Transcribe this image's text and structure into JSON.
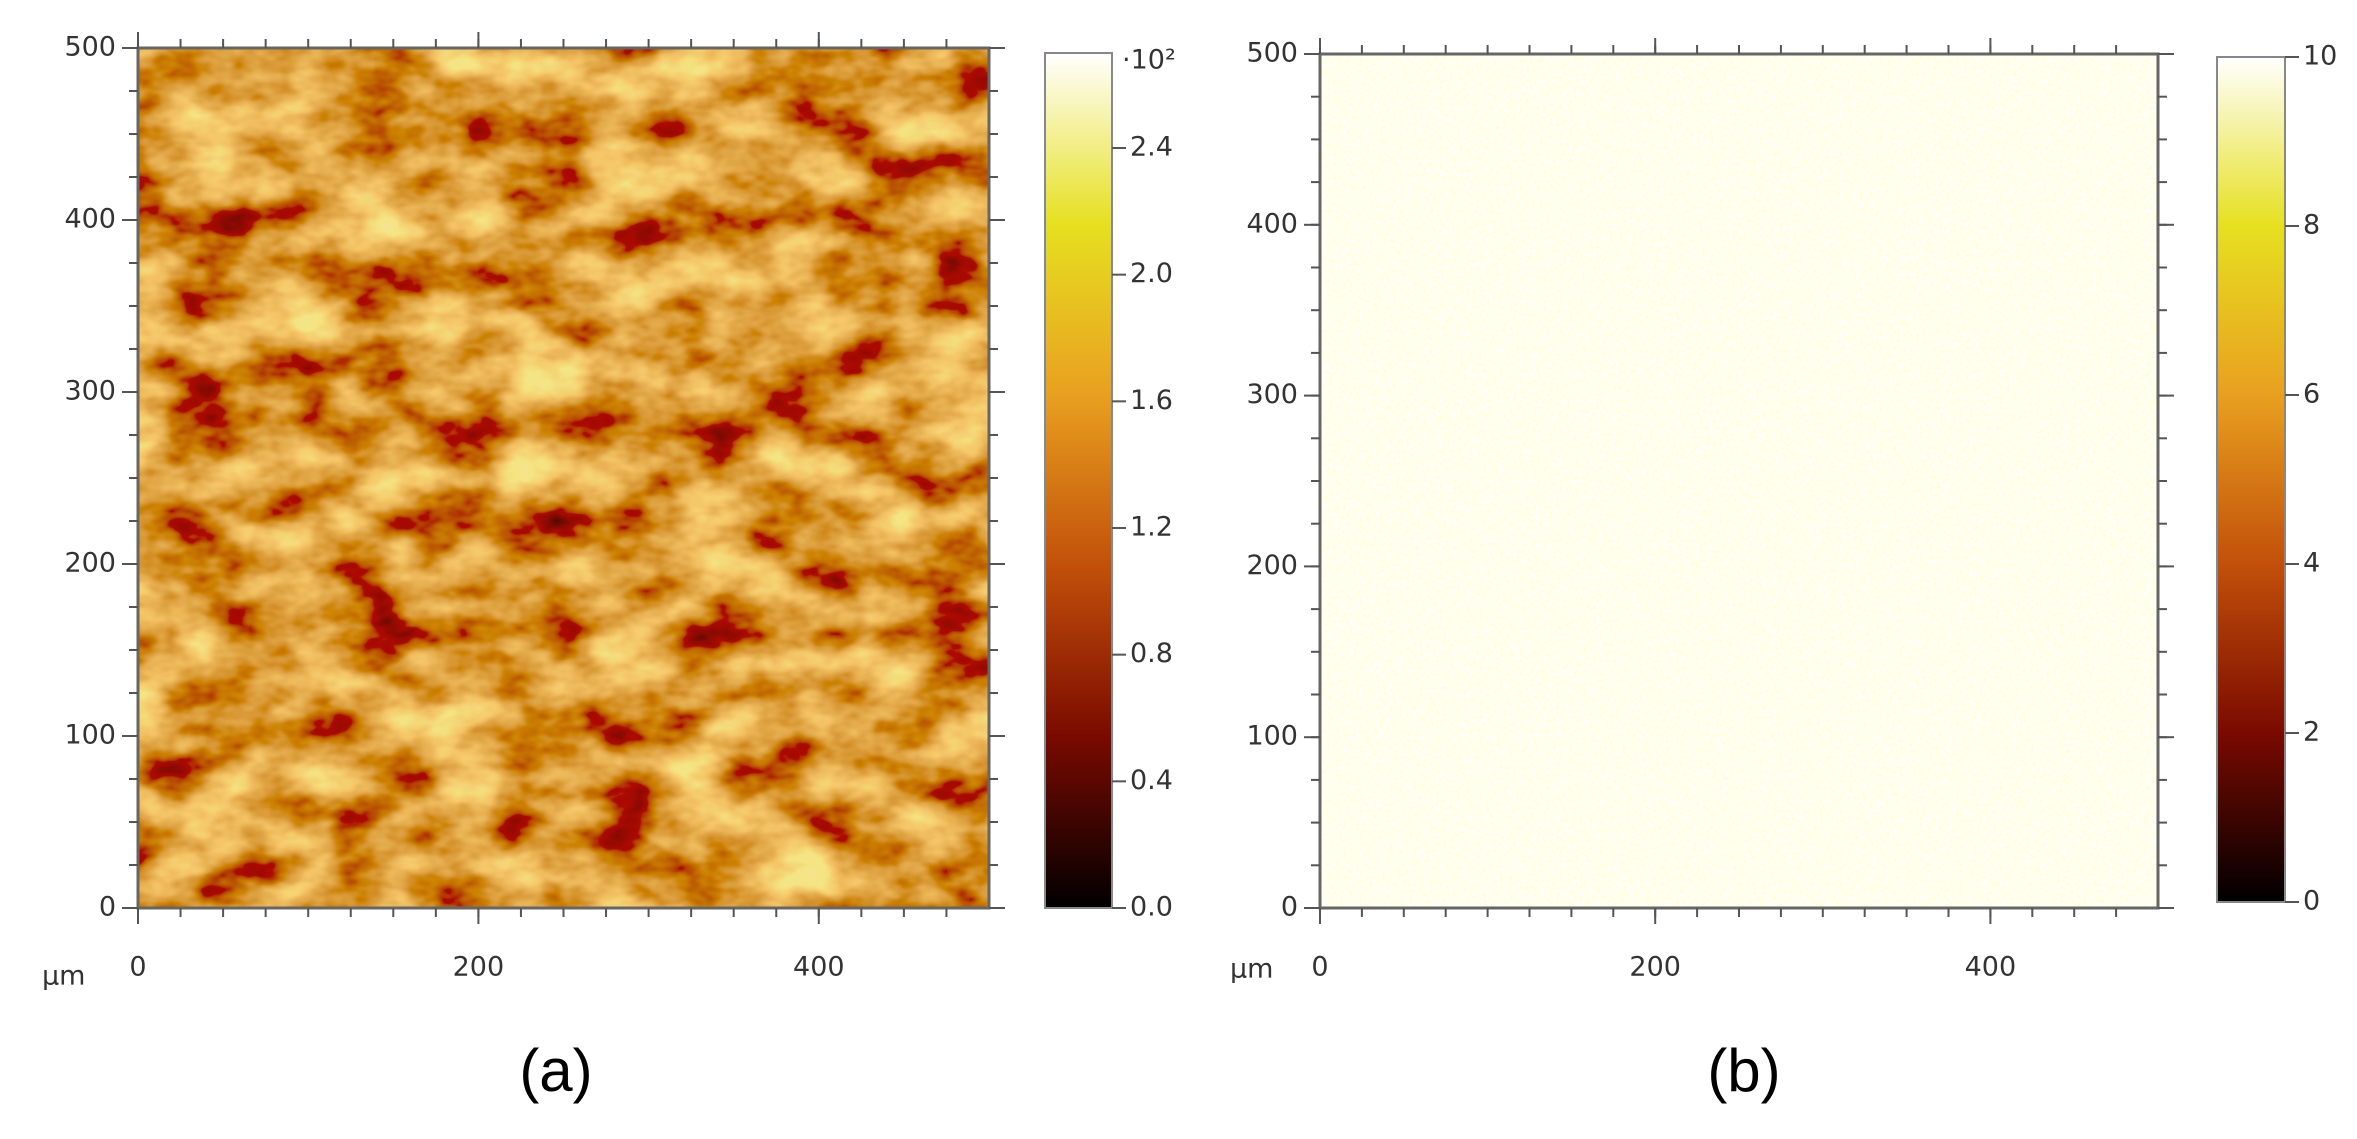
{
  "chart_data": [
    {
      "type": "heatmap",
      "caption": "(a)",
      "x_label": "µm",
      "xlim": [
        0,
        500
      ],
      "xticks": [
        0,
        200,
        400
      ],
      "ylim": [
        0,
        500
      ],
      "yticks": [
        0,
        100,
        200,
        300,
        400,
        500
      ],
      "colorbar_label": "·10²",
      "clim": [
        0,
        2.7
      ],
      "cticks": [
        {
          "value": 0,
          "label": "0.0"
        },
        0.4,
        0.8,
        1.2,
        1.6,
        {
          "value": 2,
          "label": "2.0"
        },
        2.4
      ],
      "colormap": [
        "#000000",
        "#7a0a00",
        "#c2500a",
        "#e8a020",
        "#e6e020",
        "#ffffff"
      ]
    },
    {
      "type": "heatmap",
      "caption": "(b)",
      "x_label": "µm",
      "xlim": [
        0,
        500
      ],
      "xticks": [
        0,
        200,
        400
      ],
      "ylim": [
        0,
        500
      ],
      "yticks": [
        0,
        100,
        200,
        300,
        400,
        500
      ],
      "clim": [
        0,
        10
      ],
      "cticks": [
        0,
        2,
        4,
        6,
        8,
        10
      ],
      "colormap": [
        "#000000",
        "#7a0a00",
        "#c2500a",
        "#e8a020",
        "#e6e020",
        "#ffffff"
      ]
    }
  ]
}
